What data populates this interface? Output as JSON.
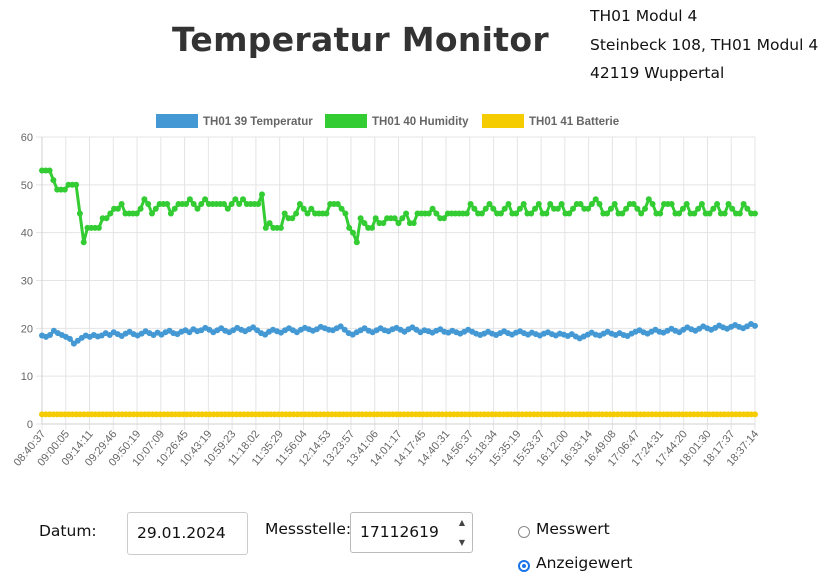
{
  "page": {
    "title": "Temperatur Monitor"
  },
  "address": {
    "line1": "TH01 Modul 4",
    "line2": "Steinbeck 108, TH01 Modul 4",
    "line3": "42119 Wuppertal"
  },
  "colors": {
    "temperature": "#4499d4",
    "humidity": "#33cc33",
    "battery": "#f5cc00",
    "grid": "#e4e4e4"
  },
  "controls": {
    "datum_label": "Datum:",
    "datum_value": "29.01.2024",
    "messstelle_label": "Messstelle:",
    "messstelle_value": "17112619",
    "radio_options": [
      "Messwert",
      "Anzeigewert"
    ],
    "radio_selected": "Anzeigewert",
    "spinner_up_icon": "caret-up-icon",
    "spinner_down_icon": "caret-down-icon"
  },
  "chart_data": {
    "type": "line",
    "ylim": [
      0,
      60
    ],
    "yticks": [
      0,
      10,
      20,
      30,
      40,
      50,
      60
    ],
    "grid": true,
    "legend_position": "top",
    "x_tick_labels": [
      "08:40:37",
      "09:00:05",
      "09:14:11",
      "09:29:46",
      "09:50:19",
      "10:07:09",
      "10:26:45",
      "10:43:19",
      "10:59:23",
      "11:18:02",
      "11:35:29",
      "11:56:04",
      "12:14:53",
      "13:23:57",
      "13:41:06",
      "14:01:17",
      "14:17:45",
      "14:40:31",
      "14:56:37",
      "15:18:34",
      "15:35:19",
      "15:53:37",
      "16:12:00",
      "16:33:14",
      "16:49:08",
      "17:06:47",
      "17:24:31",
      "17:44:20",
      "18:01:30",
      "18:17:37",
      "18:37:14"
    ],
    "series": [
      {
        "name": "TH01 39 Temperatur",
        "values": [
          18.5,
          18.2,
          18.6,
          19.5,
          19,
          18.6,
          18.2,
          17.8,
          16.8,
          17.4,
          18,
          18.5,
          18.2,
          18.6,
          18.3,
          18.5,
          19,
          18.6,
          19.2,
          18.8,
          18.4,
          18.9,
          19.3,
          18.8,
          18.5,
          18.9,
          19.4,
          19,
          18.6,
          19.1,
          18.7,
          19.2,
          19.5,
          19,
          18.8,
          19.3,
          19.6,
          19.2,
          19.8,
          19.4,
          19.6,
          20.1,
          19.7,
          19.2,
          19.6,
          20,
          19.5,
          19.2,
          19.6,
          20.1,
          19.7,
          19.4,
          19.8,
          20.2,
          19.6,
          19,
          18.7,
          19.3,
          19.7,
          19.4,
          19.1,
          19.6,
          20,
          19.6,
          19.2,
          19.7,
          20.1,
          19.8,
          19.5,
          19.8,
          20.3,
          20,
          19.7,
          19.6,
          20,
          20.4,
          19.7,
          19,
          18.7,
          19.2,
          19.6,
          20,
          19.5,
          19.2,
          19.6,
          20,
          19.6,
          19.4,
          19.8,
          20.1,
          19.7,
          19.3,
          19.8,
          20.2,
          19.7,
          19.2,
          19.6,
          19.4,
          19.1,
          19.5,
          19.8,
          19.3,
          19.1,
          19.5,
          19.2,
          18.9,
          19.3,
          19.7,
          19.3,
          18.9,
          18.6,
          18.9,
          19.3,
          18.9,
          18.6,
          19,
          19.4,
          19,
          18.7,
          19.1,
          19.4,
          19,
          18.7,
          19.1,
          18.8,
          18.5,
          18.9,
          19.2,
          18.8,
          18.5,
          18.9,
          18.7,
          18.4,
          18.8,
          18.3,
          17.9,
          18.3,
          18.7,
          19.1,
          18.7,
          18.5,
          18.9,
          19.3,
          18.9,
          18.6,
          19,
          18.6,
          18.4,
          18.9,
          19.3,
          19.6,
          19.2,
          18.9,
          19.3,
          19.7,
          19.3,
          19.1,
          19.5,
          19.9,
          19.5,
          19.2,
          19.7,
          20.2,
          19.8,
          19.5,
          19.9,
          20.4,
          20,
          19.7,
          20.1,
          20.6,
          20.2,
          19.9,
          20.3,
          20.7,
          20.3,
          20,
          20.4,
          20.9,
          20.5
        ],
        "color": "#4499d4"
      },
      {
        "name": "TH01 40 Humidity",
        "values": [
          53,
          53,
          53,
          51,
          49,
          49,
          49,
          50,
          50,
          50,
          44,
          38,
          41,
          41,
          41,
          41,
          43,
          43,
          44,
          45,
          45,
          46,
          44,
          44,
          44,
          44,
          45,
          47,
          46,
          44,
          45,
          46,
          46,
          46,
          44,
          45,
          46,
          46,
          46,
          47,
          46,
          45,
          46,
          47,
          46,
          46,
          46,
          46,
          46,
          45,
          46,
          47,
          46,
          47,
          46,
          46,
          46,
          46,
          48,
          41,
          42,
          41,
          41,
          41,
          44,
          43,
          43,
          44,
          46,
          45,
          44,
          45,
          44,
          44,
          44,
          44,
          46,
          46,
          46,
          45,
          44,
          41,
          40,
          38,
          43,
          42,
          41,
          41,
          43,
          42,
          42,
          43,
          43,
          43,
          42,
          43,
          44,
          42,
          42,
          44,
          44,
          44,
          44,
          45,
          44,
          43,
          43,
          44,
          44,
          44,
          44,
          44,
          44,
          46,
          45,
          44,
          44,
          45,
          46,
          45,
          44,
          44,
          45,
          46,
          44,
          44,
          45,
          46,
          44,
          44,
          45,
          46,
          44,
          44,
          46,
          45,
          45,
          46,
          44,
          44,
          45,
          46,
          46,
          45,
          45,
          46,
          47,
          46,
          44,
          44,
          45,
          46,
          44,
          44,
          45,
          46,
          46,
          45,
          44,
          45,
          47,
          46,
          44,
          44,
          46,
          46,
          46,
          44,
          44,
          45,
          46,
          44,
          44,
          45,
          46,
          44,
          44,
          45,
          46,
          44,
          44,
          46,
          45,
          44,
          44,
          46,
          45,
          44,
          44
        ],
        "color": "#33cc33"
      },
      {
        "name": "TH01 41 Batterie",
        "values": [
          2,
          2,
          2,
          2,
          2,
          2,
          2,
          2,
          2,
          2,
          2,
          2,
          2,
          2,
          2,
          2,
          2,
          2,
          2,
          2,
          2,
          2,
          2,
          2,
          2,
          2,
          2,
          2,
          2,
          2,
          2,
          2,
          2,
          2,
          2,
          2,
          2,
          2,
          2,
          2,
          2,
          2,
          2,
          2,
          2,
          2,
          2,
          2,
          2,
          2,
          2,
          2,
          2,
          2,
          2,
          2,
          2,
          2,
          2,
          2,
          2,
          2,
          2,
          2,
          2,
          2,
          2,
          2,
          2,
          2,
          2,
          2,
          2,
          2,
          2,
          2,
          2,
          2,
          2,
          2,
          2,
          2,
          2,
          2,
          2,
          2,
          2,
          2,
          2,
          2,
          2,
          2,
          2,
          2,
          2,
          2,
          2,
          2,
          2,
          2,
          2,
          2,
          2,
          2,
          2,
          2,
          2,
          2,
          2,
          2,
          2,
          2,
          2,
          2,
          2,
          2,
          2,
          2,
          2,
          2,
          2,
          2,
          2,
          2,
          2,
          2,
          2,
          2,
          2,
          2,
          2,
          2,
          2,
          2,
          2,
          2,
          2,
          2,
          2,
          2,
          2,
          2,
          2,
          2,
          2,
          2,
          2,
          2,
          2,
          2,
          2,
          2,
          2,
          2,
          2,
          2,
          2,
          2,
          2,
          2,
          2,
          2,
          2,
          2,
          2,
          2,
          2,
          2,
          2,
          2,
          2,
          2,
          2,
          2,
          2,
          2,
          2,
          2,
          2,
          2,
          2,
          2,
          2,
          2,
          2,
          2,
          2,
          2
        ],
        "color": "#f5cc00"
      }
    ]
  }
}
